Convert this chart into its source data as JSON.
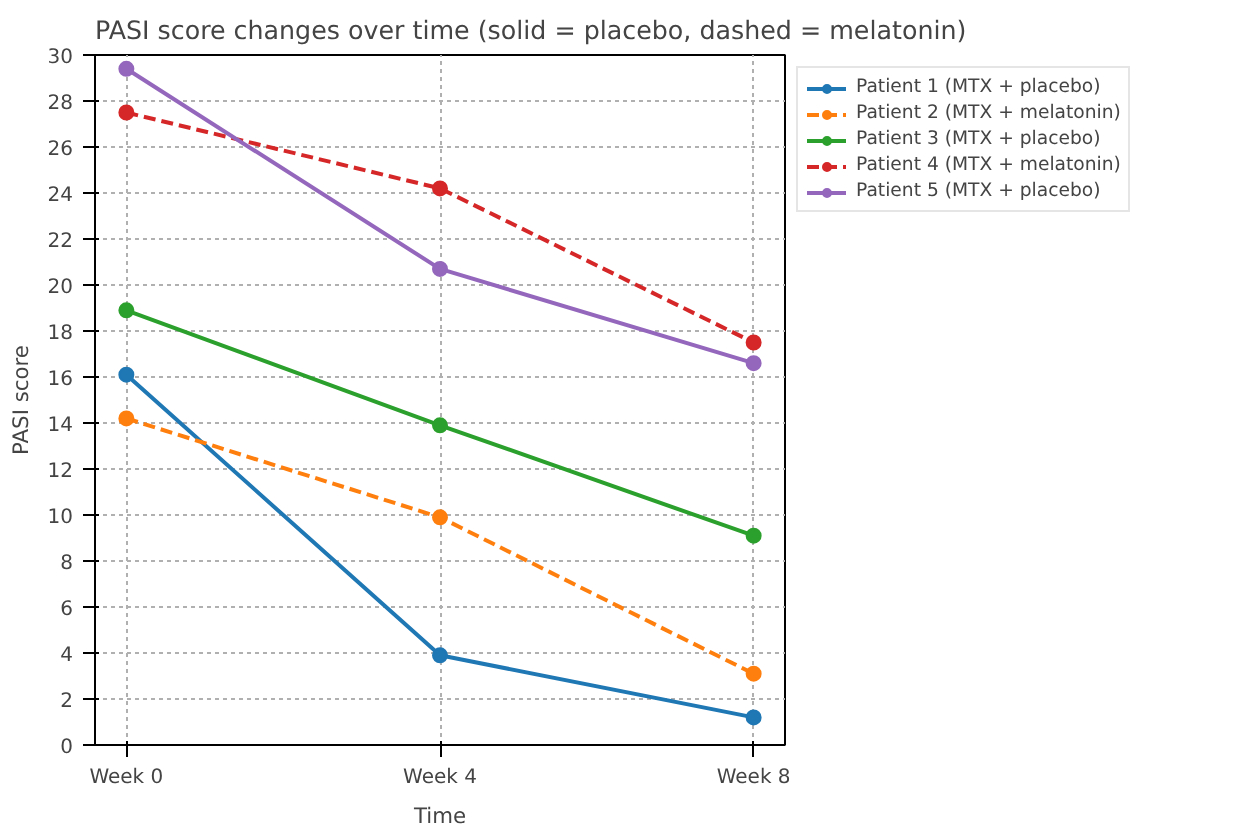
{
  "chart_data": {
    "type": "line",
    "title": "PASI score changes over time (solid = placebo, dashed = melatonin)",
    "xlabel": "Time",
    "ylabel": "PASI score",
    "categories": [
      "Week 0",
      "Week 4",
      "Week 8"
    ],
    "series": [
      {
        "name": "Patient 1 (MTX + placebo)",
        "color": "#1f77b4",
        "line_style": "solid",
        "values": [
          16.1,
          3.9,
          1.2
        ]
      },
      {
        "name": "Patient 2 (MTX + melatonin)",
        "color": "#ff7f0e",
        "line_style": "dashed",
        "values": [
          14.2,
          9.9,
          3.1
        ]
      },
      {
        "name": "Patient 3 (MTX + placebo)",
        "color": "#2ca02c",
        "line_style": "solid",
        "values": [
          18.9,
          13.9,
          9.1
        ]
      },
      {
        "name": "Patient 4 (MTX + melatonin)",
        "color": "#d62728",
        "line_style": "dashed",
        "values": [
          27.5,
          24.2,
          17.5
        ]
      },
      {
        "name": "Patient 5 (MTX + placebo)",
        "color": "#9467bd",
        "line_style": "solid",
        "values": [
          29.4,
          20.7,
          16.6
        ]
      }
    ],
    "ylim": [
      0,
      30
    ],
    "yticks": [
      0,
      2,
      4,
      6,
      8,
      10,
      12,
      14,
      16,
      18,
      20,
      22,
      24,
      26,
      28,
      30
    ],
    "grid": true,
    "legend": "top right",
    "marker": "circle"
  }
}
